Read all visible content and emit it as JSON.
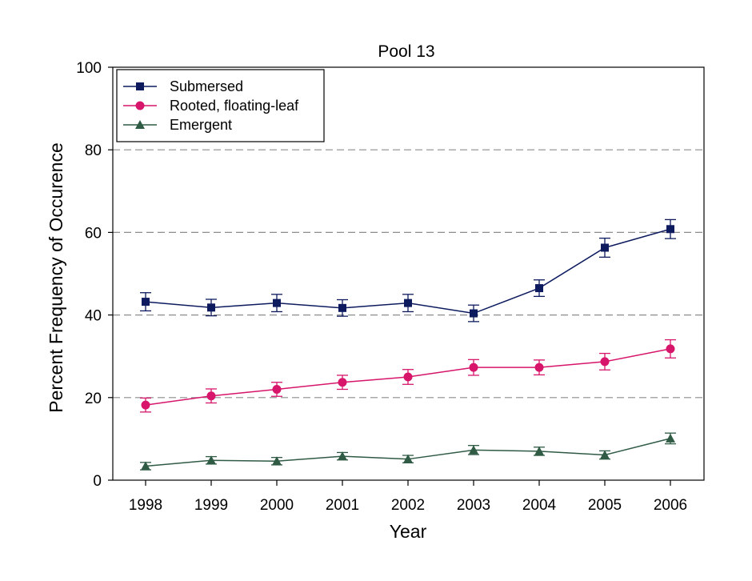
{
  "chart_data": {
    "type": "line",
    "title": "Pool 13",
    "xlabel": "Year",
    "ylabel": "Percent Frequency of Occurence",
    "x": [
      1998,
      1999,
      2000,
      2001,
      2002,
      2003,
      2004,
      2005,
      2006
    ],
    "ylim": [
      0,
      100
    ],
    "yticks": [
      0,
      20,
      40,
      60,
      80,
      100
    ],
    "grid": "horizontal dashed",
    "legend_position": "top-left",
    "series": [
      {
        "name": "Submersed",
        "marker": "square",
        "color": "#0d1b5e",
        "values": [
          43.2,
          41.8,
          42.9,
          41.7,
          42.9,
          40.4,
          46.5,
          56.3,
          60.8
        ],
        "errors": [
          2.2,
          2.0,
          2.1,
          2.0,
          2.1,
          2.0,
          2.0,
          2.3,
          2.3
        ]
      },
      {
        "name": "Rooted, floating-leaf",
        "marker": "circle",
        "color": "#d6156b",
        "values": [
          18.2,
          20.4,
          22.0,
          23.7,
          25.0,
          27.3,
          27.3,
          28.7,
          31.8
        ],
        "errors": [
          1.7,
          1.7,
          1.7,
          1.7,
          1.8,
          1.9,
          1.8,
          2.0,
          2.2
        ]
      },
      {
        "name": "Emergent",
        "marker": "triangle",
        "color": "#2f5a44",
        "values": [
          3.4,
          4.8,
          4.6,
          5.8,
          5.1,
          7.3,
          7.0,
          6.1,
          10.1
        ],
        "errors": [
          0.9,
          0.9,
          0.9,
          0.9,
          0.9,
          1.1,
          1.0,
          1.0,
          1.3
        ]
      }
    ]
  }
}
